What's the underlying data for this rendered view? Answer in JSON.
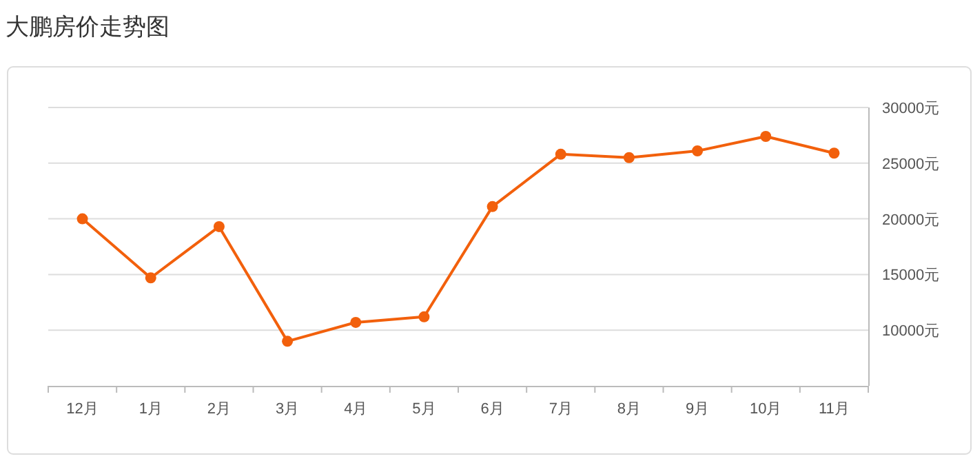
{
  "chart_data": {
    "type": "line",
    "title": "大鹏房价走势图",
    "categories": [
      "12月",
      "1月",
      "2月",
      "3月",
      "4月",
      "5月",
      "6月",
      "7月",
      "8月",
      "9月",
      "10月",
      "11月"
    ],
    "series": [
      {
        "color": "#f2600c",
        "values": [
          20000,
          14700,
          19300,
          9000,
          10700,
          11200,
          21100,
          25800,
          25500,
          26100,
          27400,
          25900
        ]
      }
    ],
    "ylim": [
      5000,
      30000
    ],
    "yticks": [
      {
        "value": 10000,
        "label": "10000元"
      },
      {
        "value": 15000,
        "label": "15000元"
      },
      {
        "value": 20000,
        "label": "20000元"
      },
      {
        "value": 25000,
        "label": "25000元"
      },
      {
        "value": 30000,
        "label": "30000元"
      }
    ],
    "grid": "y",
    "marker": "circle",
    "line_style": "solid"
  }
}
